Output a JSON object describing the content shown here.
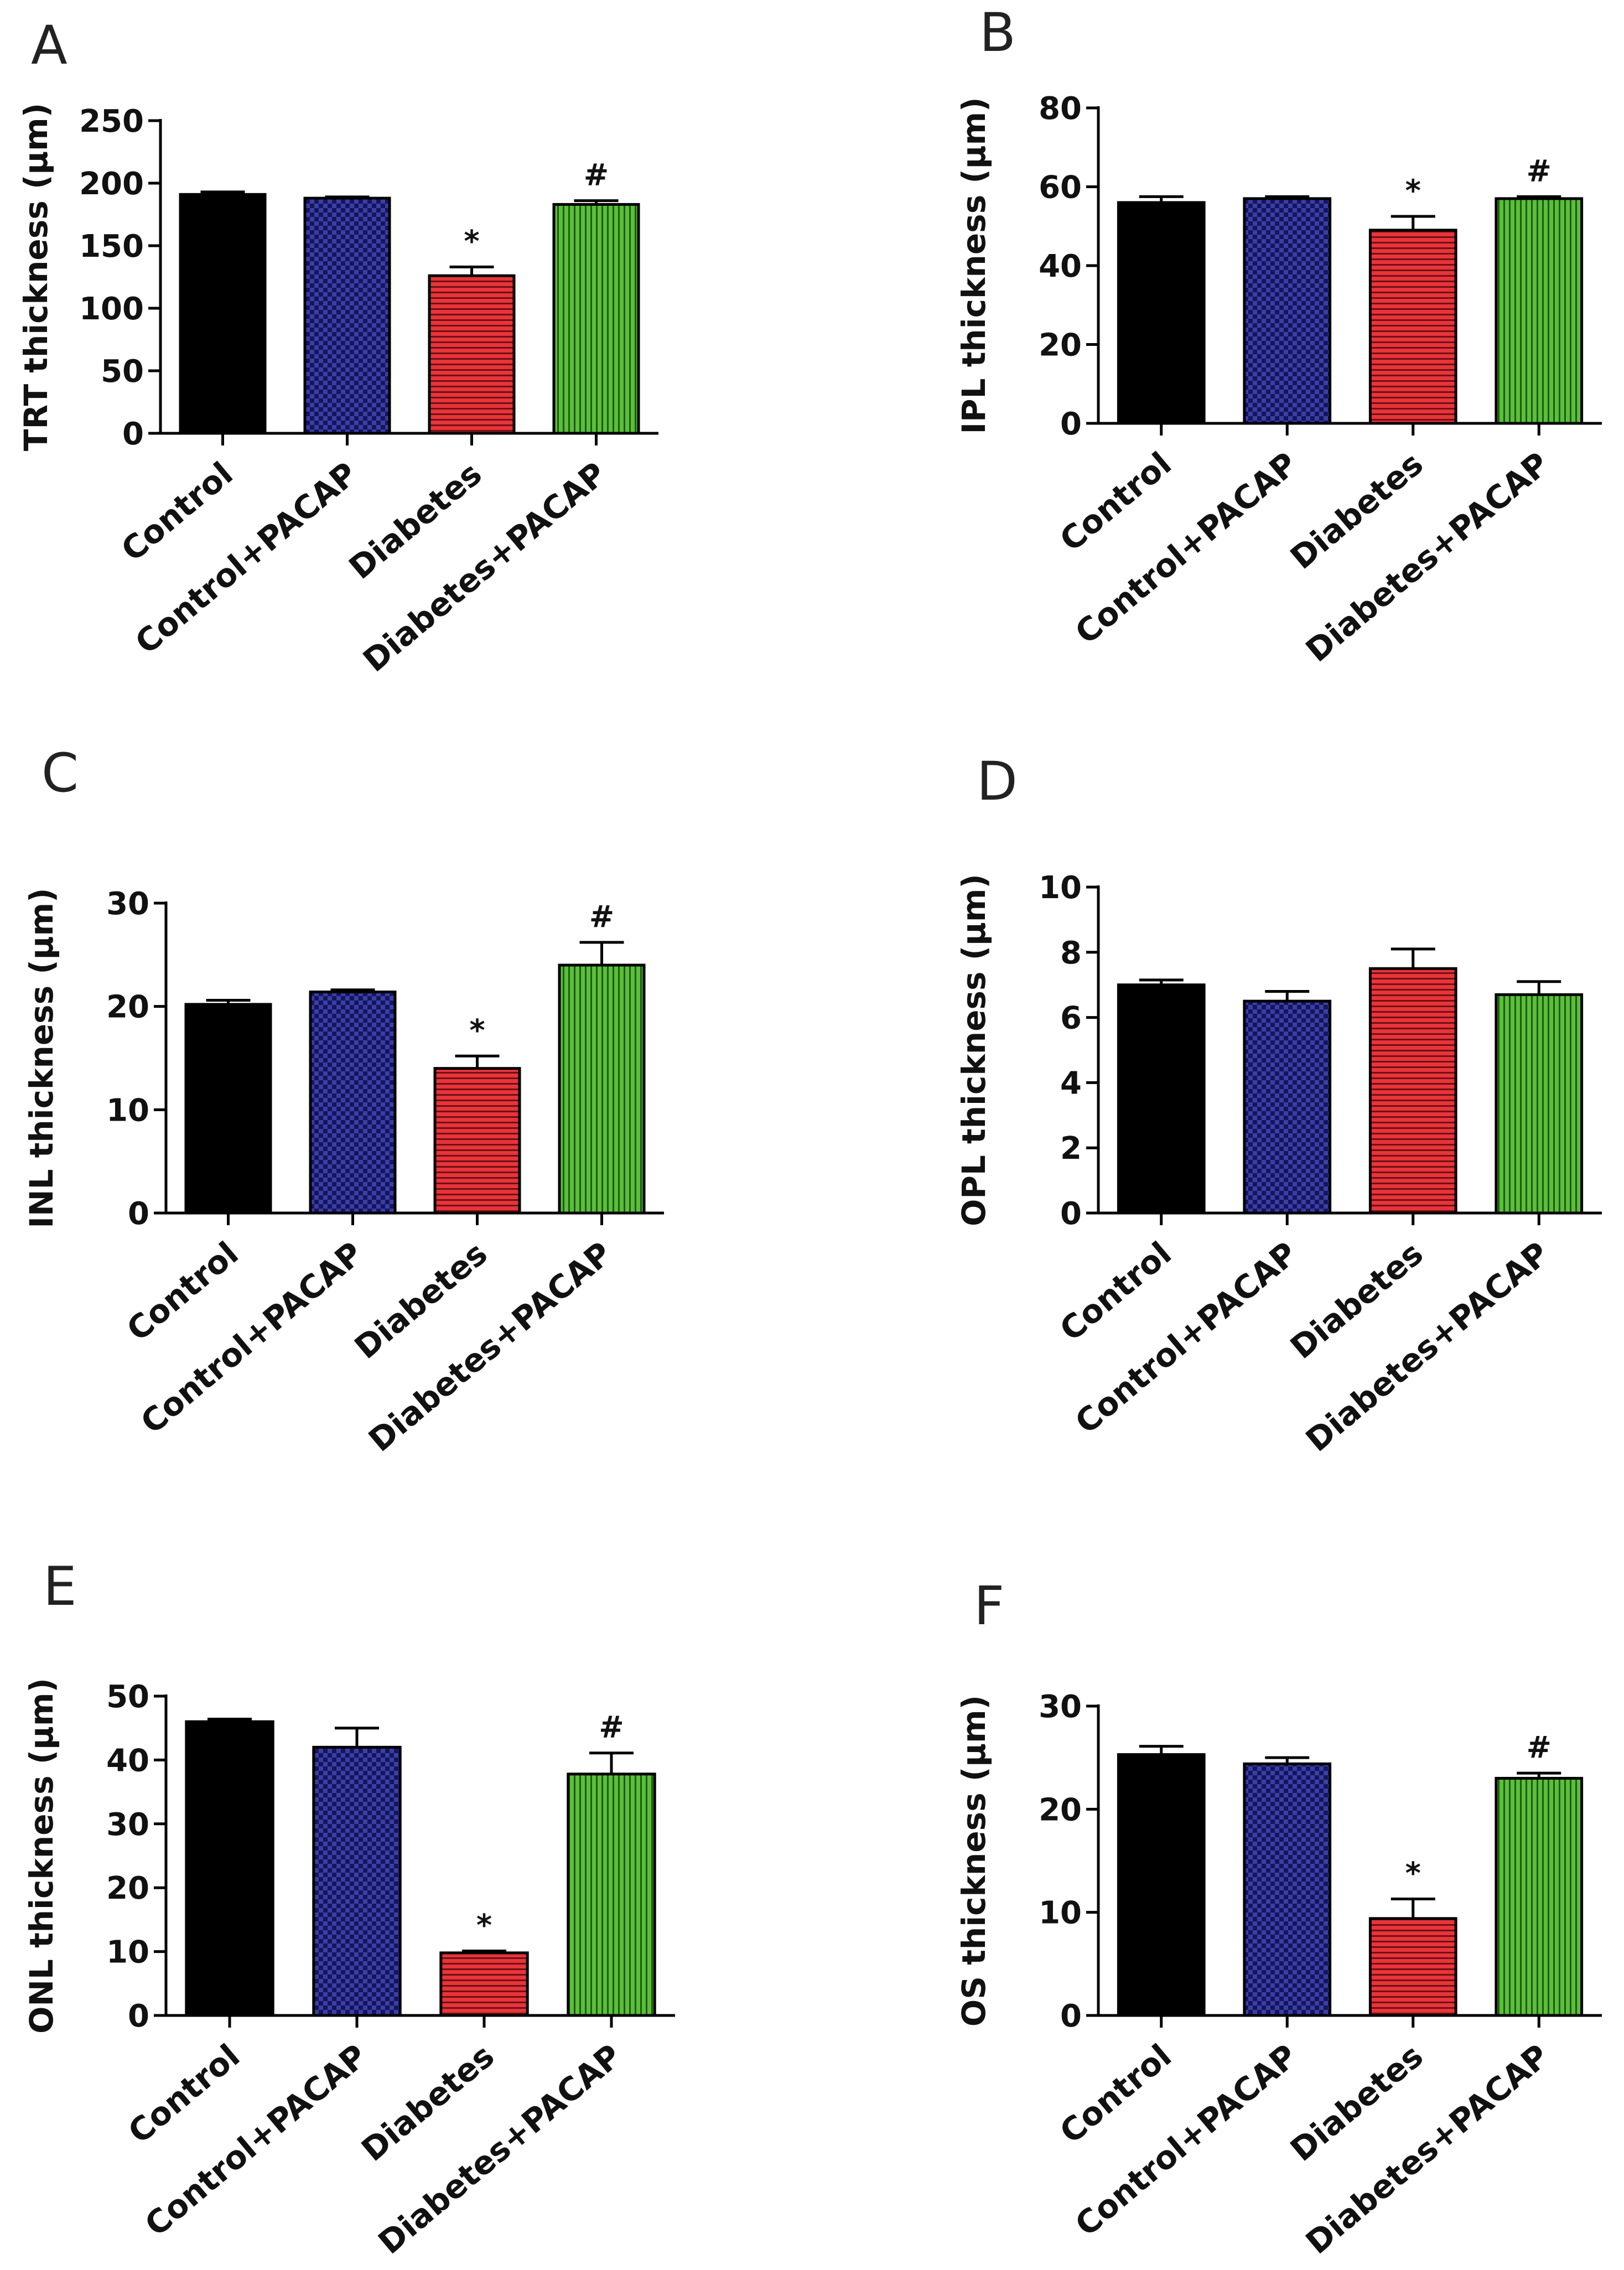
{
  "chart_data": [
    {
      "panel": "A",
      "type": "bar",
      "categories": [
        "Control",
        "Control+PACAP",
        "Diabetes",
        "Diabetes+PACAP"
      ],
      "values": [
        191,
        188,
        126,
        183
      ],
      "errors": [
        2,
        1,
        7,
        3
      ],
      "annotations": [
        "",
        "",
        "*",
        "#"
      ],
      "ylabel": "TRT thickness (μm)",
      "yticks": [
        0,
        50,
        100,
        150,
        200,
        250
      ],
      "ylim": [
        0,
        250
      ]
    },
    {
      "panel": "B",
      "type": "bar",
      "categories": [
        "Control",
        "Control+PACAP",
        "Diabetes",
        "Diabetes+PACAP"
      ],
      "values": [
        56,
        57,
        49,
        57
      ],
      "errors": [
        1.5,
        0.5,
        3.5,
        0.5
      ],
      "annotations": [
        "",
        "",
        "*",
        "#"
      ],
      "ylabel": "IPL thickness (μm)",
      "yticks": [
        0,
        20,
        40,
        60,
        80
      ],
      "ylim": [
        0,
        80
      ]
    },
    {
      "panel": "C",
      "type": "bar",
      "categories": [
        "Control",
        "Control+PACAP",
        "Diabetes",
        "Diabetes+PACAP"
      ],
      "values": [
        20.2,
        21.4,
        14.0,
        24.0
      ],
      "errors": [
        0.4,
        0.2,
        1.2,
        2.2
      ],
      "annotations": [
        "",
        "",
        "*",
        "#"
      ],
      "ylabel": "INL thickness (μm)",
      "yticks": [
        0,
        10,
        20,
        30
      ],
      "ylim": [
        0,
        30
      ]
    },
    {
      "panel": "D",
      "type": "bar",
      "categories": [
        "Control",
        "Control+PACAP",
        "Diabetes",
        "Diabetes+PACAP"
      ],
      "values": [
        7.0,
        6.5,
        7.5,
        6.7
      ],
      "errors": [
        0.15,
        0.3,
        0.6,
        0.4
      ],
      "annotations": [
        "",
        "",
        "",
        ""
      ],
      "ylabel": "OPL thickness (μm)",
      "yticks": [
        0,
        2,
        4,
        6,
        8,
        10
      ],
      "ylim": [
        0,
        10
      ]
    },
    {
      "panel": "E",
      "type": "bar",
      "categories": [
        "Control",
        "Control+PACAP",
        "Diabetes",
        "Diabetes+PACAP"
      ],
      "values": [
        46,
        42,
        9.8,
        37.8
      ],
      "errors": [
        0.4,
        3,
        0.3,
        3.3
      ],
      "annotations": [
        "",
        "",
        "*",
        "#"
      ],
      "ylabel": "ONL thickness (μm)",
      "yticks": [
        0,
        10,
        20,
        30,
        40,
        50
      ],
      "ylim": [
        0,
        50
      ]
    },
    {
      "panel": "F",
      "type": "bar",
      "categories": [
        "Control",
        "Control+PACAP",
        "Diabetes",
        "Diabetes+PACAP"
      ],
      "values": [
        25.3,
        24.4,
        9.4,
        23.0
      ],
      "errors": [
        0.8,
        0.6,
        1.9,
        0.5
      ],
      "annotations": [
        "",
        "",
        "*",
        "#"
      ],
      "ylabel": "OS thickness (μm)",
      "yticks": [
        0,
        10,
        20,
        30
      ],
      "ylim": [
        0,
        30
      ]
    }
  ],
  "series_colors": {
    "Control": "#000000",
    "Control+PACAP": "#3a3ea8",
    "Diabetes": "#e8343a",
    "Diabetes+PACAP": "#5bbf3a"
  },
  "series_patterns": {
    "Control": "solid",
    "Control+PACAP": "checker",
    "Diabetes": "horizontal-lines",
    "Diabetes+PACAP": "vertical-lines"
  }
}
